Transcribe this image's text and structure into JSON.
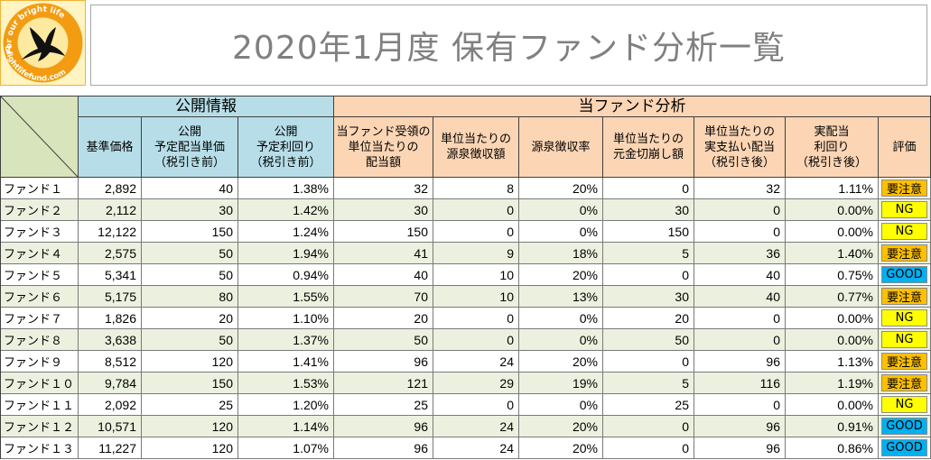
{
  "title": "2020年1月度 保有ファンド分析一覧",
  "logo": {
    "tagline": "For our bright life",
    "url_text": "brightlifefund.com"
  },
  "header": {
    "group_public": "公開情報",
    "group_analysis": "当ファンド分析",
    "col_nav": "基準価格",
    "col_div_pub": "公開\n予定配当単価\n（税引き前）",
    "col_yield_pub": "公開\n予定利回り\n（税引き前）",
    "col_div_recv": "当ファンド受領の\n単位当たりの\n配当額",
    "col_withholding": "単位当たりの\n源泉徴収額",
    "col_withholding_rate": "源泉徴収率",
    "col_principal": "単位当たりの\n元金切崩し額",
    "col_div_net": "単位当たりの\n実支払い配当\n（税引き後）",
    "col_yield_net": "実配当\n利回り\n（税引き後）",
    "col_rating": "評価"
  },
  "rows": [
    {
      "name": "ファンド１",
      "nav": "2,892",
      "div_pub": "40",
      "yield_pub": "1.38%",
      "div_recv": "32",
      "withholding": "8",
      "withholding_rate": "20%",
      "principal": "0",
      "div_net": "32",
      "yield_net": "1.11%",
      "rating": "要注意"
    },
    {
      "name": "ファンド２",
      "nav": "2,112",
      "div_pub": "30",
      "yield_pub": "1.42%",
      "div_recv": "30",
      "withholding": "0",
      "withholding_rate": "0%",
      "principal": "30",
      "div_net": "0",
      "yield_net": "0.00%",
      "rating": "NG"
    },
    {
      "name": "ファンド３",
      "nav": "12,122",
      "div_pub": "150",
      "yield_pub": "1.24%",
      "div_recv": "150",
      "withholding": "0",
      "withholding_rate": "0%",
      "principal": "150",
      "div_net": "0",
      "yield_net": "0.00%",
      "rating": "NG"
    },
    {
      "name": "ファンド４",
      "nav": "2,575",
      "div_pub": "50",
      "yield_pub": "1.94%",
      "div_recv": "41",
      "withholding": "9",
      "withholding_rate": "18%",
      "principal": "5",
      "div_net": "36",
      "yield_net": "1.40%",
      "rating": "要注意"
    },
    {
      "name": "ファンド５",
      "nav": "5,341",
      "div_pub": "50",
      "yield_pub": "0.94%",
      "div_recv": "40",
      "withholding": "10",
      "withholding_rate": "20%",
      "principal": "0",
      "div_net": "40",
      "yield_net": "0.75%",
      "rating": "GOOD"
    },
    {
      "name": "ファンド６",
      "nav": "5,175",
      "div_pub": "80",
      "yield_pub": "1.55%",
      "div_recv": "70",
      "withholding": "10",
      "withholding_rate": "13%",
      "principal": "30",
      "div_net": "40",
      "yield_net": "0.77%",
      "rating": "要注意"
    },
    {
      "name": "ファンド７",
      "nav": "1,826",
      "div_pub": "20",
      "yield_pub": "1.10%",
      "div_recv": "20",
      "withholding": "0",
      "withholding_rate": "0%",
      "principal": "20",
      "div_net": "0",
      "yield_net": "0.00%",
      "rating": "NG"
    },
    {
      "name": "ファンド８",
      "nav": "3,638",
      "div_pub": "50",
      "yield_pub": "1.37%",
      "div_recv": "50",
      "withholding": "0",
      "withholding_rate": "0%",
      "principal": "50",
      "div_net": "0",
      "yield_net": "0.00%",
      "rating": "NG"
    },
    {
      "name": "ファンド９",
      "nav": "8,512",
      "div_pub": "120",
      "yield_pub": "1.41%",
      "div_recv": "96",
      "withholding": "24",
      "withholding_rate": "20%",
      "principal": "0",
      "div_net": "96",
      "yield_net": "1.13%",
      "rating": "要注意"
    },
    {
      "name": "ファンド１０",
      "nav": "9,784",
      "div_pub": "150",
      "yield_pub": "1.53%",
      "div_recv": "121",
      "withholding": "29",
      "withholding_rate": "19%",
      "principal": "5",
      "div_net": "116",
      "yield_net": "1.19%",
      "rating": "要注意"
    },
    {
      "name": "ファンド１１",
      "nav": "2,092",
      "div_pub": "25",
      "yield_pub": "1.20%",
      "div_recv": "25",
      "withholding": "0",
      "withholding_rate": "0%",
      "principal": "25",
      "div_net": "0",
      "yield_net": "0.00%",
      "rating": "NG"
    },
    {
      "name": "ファンド１２",
      "nav": "10,571",
      "div_pub": "120",
      "yield_pub": "1.14%",
      "div_recv": "96",
      "withholding": "24",
      "withholding_rate": "20%",
      "principal": "0",
      "div_net": "96",
      "yield_net": "0.91%",
      "rating": "GOOD"
    },
    {
      "name": "ファンド１３",
      "nav": "11,227",
      "div_pub": "120",
      "yield_pub": "1.07%",
      "div_recv": "96",
      "withholding": "24",
      "withholding_rate": "20%",
      "principal": "0",
      "div_net": "96",
      "yield_net": "0.86%",
      "rating": "GOOD"
    }
  ],
  "rating_colors": {
    "要注意": "#ffc000",
    "NG": "#ffff00",
    "GOOD": "#00b0f0"
  },
  "colors": {
    "public_header": "#b7dee8",
    "analysis_header": "#fcd5b4",
    "corner": "#d8e4bc",
    "stripe": "#ebf1de"
  }
}
